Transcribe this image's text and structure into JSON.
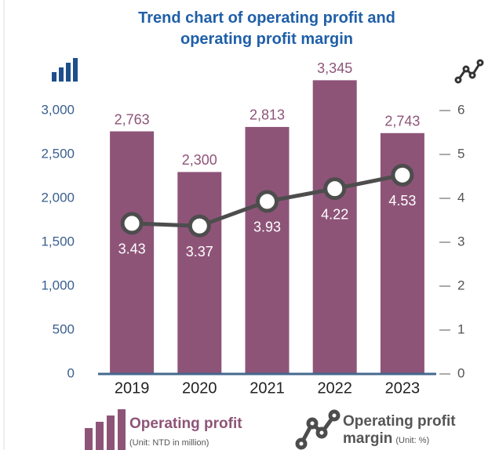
{
  "chart_data": {
    "type": "bar",
    "title": "Trend chart of operating profit and operating profit margin",
    "categories": [
      "2019",
      "2020",
      "2021",
      "2022",
      "2023"
    ],
    "series": [
      {
        "name": "Operating profit",
        "unit": "(Unit: NTD in million)",
        "type": "bar",
        "color": "#8e5478",
        "values": [
          2763,
          2300,
          2813,
          3345,
          2743
        ],
        "value_labels": [
          "2,763",
          "2,300",
          "2,813",
          "3,345",
          "2,743"
        ]
      },
      {
        "name": "Operating profit margin",
        "unit": "(Unit: %)",
        "type": "line",
        "axis": "y2",
        "color": "#4d4d4d",
        "values": [
          3.43,
          3.37,
          3.93,
          4.22,
          4.53
        ]
      }
    ],
    "ylim": [
      0,
      3000
    ],
    "yticks": [
      0,
      500,
      {
        "value": 1000,
        "label": "1,000"
      },
      {
        "value": 1500,
        "label": "1,500"
      },
      {
        "value": 2000,
        "label": "2,000"
      },
      {
        "value": 2500,
        "label": "2,500"
      },
      {
        "value": 3000,
        "label": "3,000"
      }
    ],
    "y2lim": [
      0,
      6
    ],
    "y2ticks": [
      0,
      1,
      2,
      3,
      4,
      5,
      6
    ]
  }
}
